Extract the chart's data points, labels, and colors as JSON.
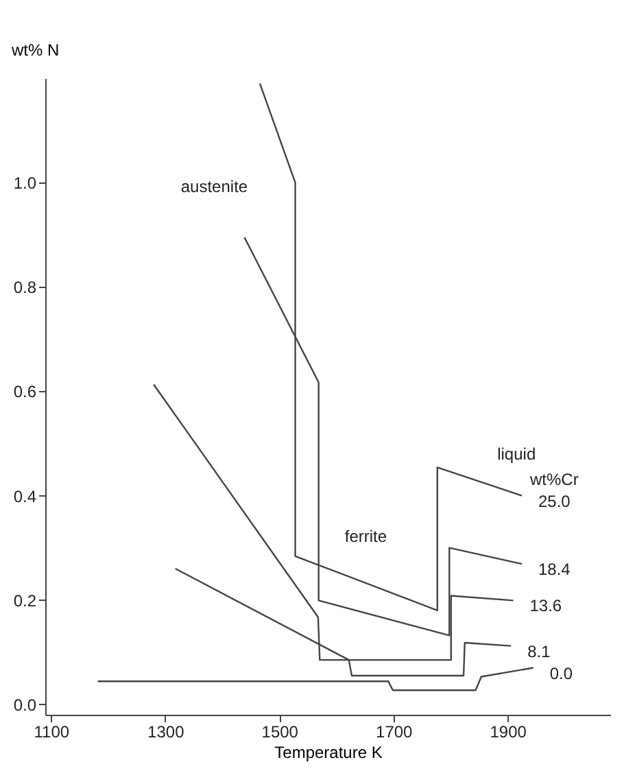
{
  "chart_data": {
    "type": "line",
    "xlabel": "Temperature K",
    "ylabel": "wt% N",
    "legend_title": "wt%Cr",
    "xlim": [
      1090,
      2080
    ],
    "xticks": [
      1100,
      1300,
      1500,
      1700,
      1900
    ],
    "ylim": [
      -0.02,
      1.2
    ],
    "yticks": [
      {
        "value": 0,
        "label": "0.0"
      },
      {
        "value": 0.2,
        "label": "0.2"
      },
      {
        "value": 0.4,
        "label": "0.4"
      },
      {
        "value": 0.6,
        "label": "0.6"
      },
      {
        "value": 0.8,
        "label": "0.8"
      },
      {
        "value": 1.0,
        "label": "1.0"
      }
    ],
    "grid": false,
    "marker": "none",
    "line_style": "solid",
    "series": [
      {
        "name": "25.0",
        "color": "#444444",
        "x": [
          1466,
          1528,
          1528,
          1777,
          1777,
          1925
        ],
        "values": [
          1.19,
          1.0,
          0.284,
          0.18,
          0.454,
          0.4
        ]
      },
      {
        "name": "18.4",
        "color": "#444444",
        "x": [
          1439,
          1569,
          1569,
          1798,
          1798,
          1925
        ],
        "values": [
          0.895,
          0.617,
          0.199,
          0.132,
          0.3,
          0.269
        ]
      },
      {
        "name": "13.6",
        "color": "#444444",
        "x": [
          1280,
          1568,
          1571,
          1801,
          1801,
          1910
        ],
        "values": [
          0.613,
          0.167,
          0.085,
          0.085,
          0.208,
          0.199
        ]
      },
      {
        "name": "8.1",
        "color": "#444444",
        "x": [
          1318,
          1622,
          1627,
          1823,
          1825,
          1906
        ],
        "values": [
          0.26,
          0.085,
          0.055,
          0.055,
          0.118,
          0.112
        ]
      },
      {
        "name": "0.0",
        "color": "#444444",
        "x": [
          1182,
          1691,
          1699,
          1844,
          1854,
          1945
        ],
        "values": [
          0.044,
          0.044,
          0.027,
          0.027,
          0.053,
          0.07
        ]
      }
    ],
    "annotations": [
      "austenite",
      "ferrite",
      "liquid"
    ]
  }
}
